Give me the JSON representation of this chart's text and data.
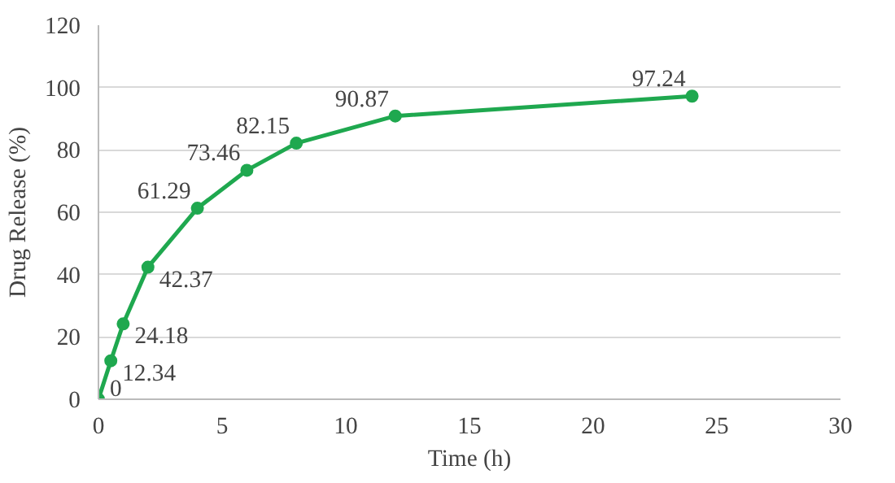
{
  "chart_data": {
    "type": "line",
    "xlabel": "Time (h)",
    "ylabel": "Drug Release (%)",
    "x": [
      0,
      0.5,
      1,
      2,
      4,
      6,
      8,
      12,
      24
    ],
    "series": [
      {
        "color": "#1fa84f",
        "values": [
          0,
          12.34,
          24.18,
          42.37,
          61.29,
          73.46,
          82.15,
          90.87,
          97.24
        ]
      }
    ],
    "xlim": [
      0,
      30
    ],
    "xticks": [
      0,
      5,
      10,
      15,
      20,
      25,
      30
    ],
    "ylim": [
      0,
      120
    ],
    "yticks": [
      0,
      20,
      40,
      60,
      80,
      100,
      120
    ],
    "grid": "y",
    "marker": "circle",
    "data_labels": true
  }
}
